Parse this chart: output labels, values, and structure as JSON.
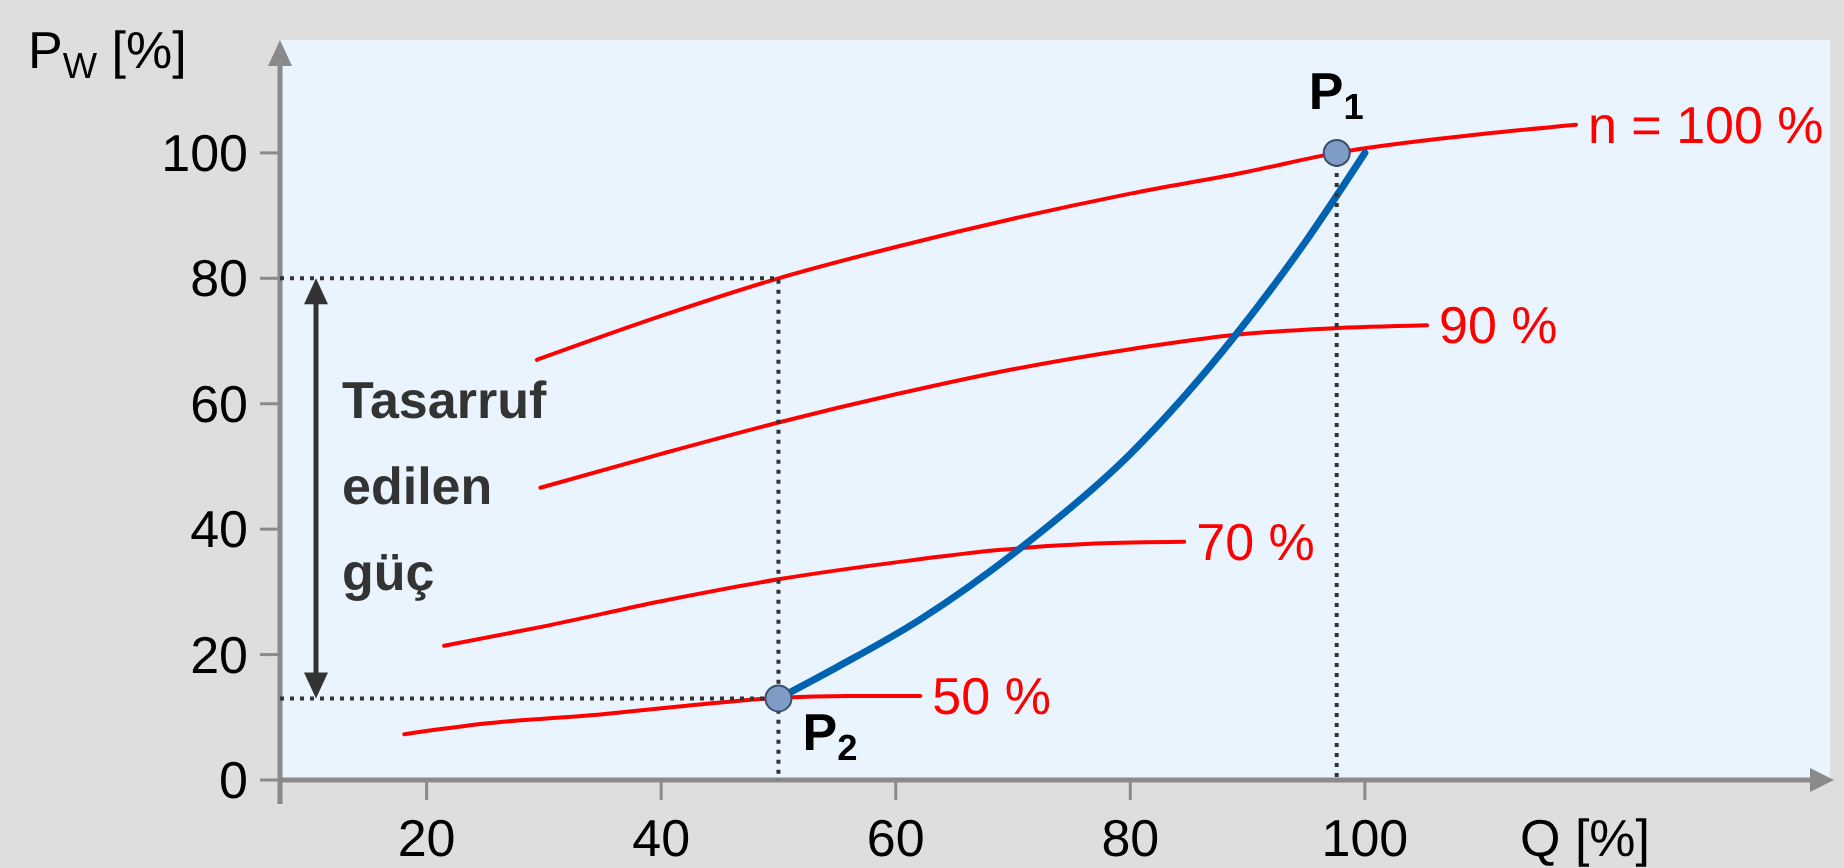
{
  "chart_data": {
    "type": "line",
    "xlabel": "Q [%]",
    "ylabel": "P$_{W}$ [%]",
    "xlim": [
      7.5,
      140
    ],
    "ylim": [
      0,
      118
    ],
    "xticks": [
      20,
      40,
      60,
      80,
      100
    ],
    "yticks": [
      0,
      20,
      40,
      60,
      80,
      100
    ],
    "series": [
      {
        "name": "n = 100 %",
        "color": "#ff0000",
        "x": [
          29.4,
          40,
          50,
          60,
          70,
          80,
          90,
          97.6,
          110,
          118
        ],
        "values": [
          67,
          74,
          80,
          85,
          89.5,
          93.5,
          97,
          100,
          103,
          104.5
        ]
      },
      {
        "name": "90 %",
        "color": "#ff0000",
        "x": [
          29.7,
          40,
          50,
          60,
          70,
          80,
          89,
          97,
          105.3
        ],
        "values": [
          46.6,
          52,
          57,
          61.5,
          65.5,
          68.7,
          71,
          72,
          72.5
        ]
      },
      {
        "name": "70 %",
        "color": "#ff0000",
        "x": [
          21.5,
          30,
          40,
          50,
          60,
          69,
          77,
          84.6
        ],
        "values": [
          21.4,
          24.5,
          28.5,
          32,
          34.7,
          36.7,
          37.7,
          38
        ]
      },
      {
        "name": "50 %",
        "color": "#ff0000",
        "x": [
          18.1,
          25,
          35,
          43,
          50,
          56,
          62.1
        ],
        "values": [
          7.3,
          9,
          10.5,
          12,
          13.1,
          13.4,
          13.4
        ]
      },
      {
        "color": "#0063b1",
        "x": [
          50,
          55,
          62,
          71,
          80,
          89,
          95,
          100
        ],
        "values": [
          13,
          18,
          25.5,
          37.5,
          52,
          71,
          86,
          100
        ]
      },
      {
        "color": "#333333",
        "line_style": "dotted",
        "x": [
          7.5,
          50,
          50
        ],
        "values": [
          80,
          80,
          0
        ]
      },
      {
        "color": "#333333",
        "line_style": "dotted",
        "x": [
          7.5,
          50
        ],
        "values": [
          13,
          13
        ]
      },
      {
        "color": "#333333",
        "line_style": "dotted",
        "x": [
          97.6,
          97.6
        ],
        "values": [
          100,
          0
        ]
      },
      {
        "type": "scatter",
        "marker": "circle",
        "color": "#7f9cc6",
        "x": [
          97.6,
          50
        ],
        "values": [
          100,
          13
        ]
      }
    ],
    "annotations": [
      {
        "text": "P$_{1}$",
        "x": 97.6,
        "y": 100
      },
      {
        "text": "P$_{2}$",
        "x": 50,
        "y": 13
      },
      "Tasarruf edilen güç"
    ]
  }
}
